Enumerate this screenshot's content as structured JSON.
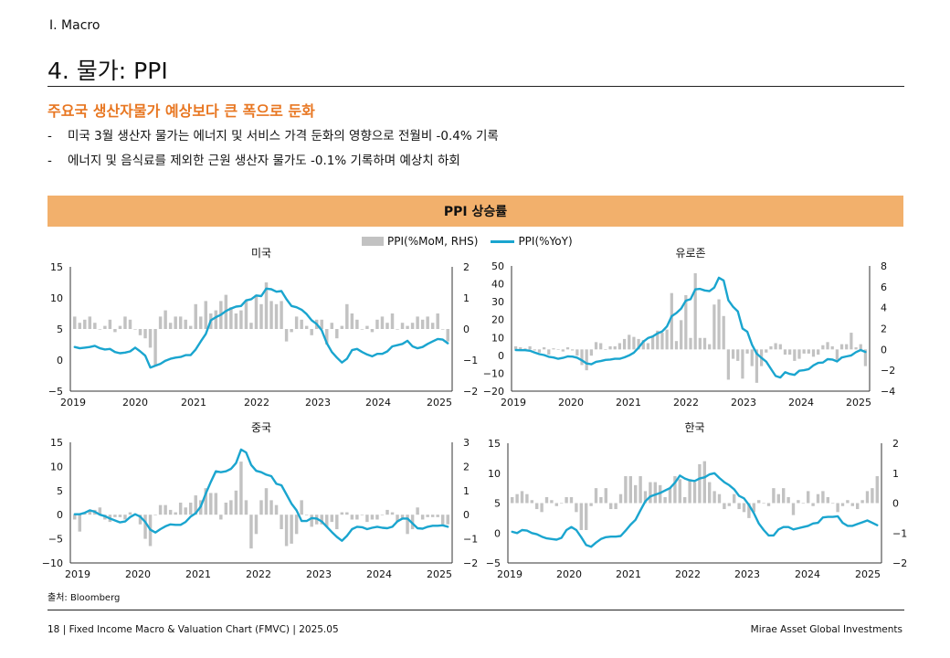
{
  "header": {
    "section": "I. Macro",
    "title": "4. 물가: PPI",
    "headline": "주요국 생산자물가 예상보다 큰 폭으로 둔화",
    "bullets": [
      "미국 3월 생산자 물가는 에너지 및 서비스 가격 둔화의 영향으로 전월비 -0.4% 기록",
      "에너지 및 음식료를 제외한 근원 생산자 물가도 -0.1% 기록하며 예상치 하회"
    ],
    "bullet_dash": "-"
  },
  "banner": {
    "title": "PPI 상승률"
  },
  "legend": {
    "bar": "PPI(%MoM, RHS)",
    "line": "PPI(%YoY)"
  },
  "colors": {
    "accent": "#e87722",
    "banner_bg": "#f2b06c",
    "bar": "#c2c2c2",
    "line": "#1aa5cf"
  },
  "chart_data": [
    {
      "type": "bar+line",
      "title": "미국",
      "x_ticks": [
        "2019",
        "2020",
        "2021",
        "2022",
        "2023",
        "2024",
        "2025"
      ],
      "x_range": [
        2019.0,
        2025.33
      ],
      "y_left": [
        -5,
        15
      ],
      "y_left_ticks": [
        -5,
        0,
        5,
        10,
        15
      ],
      "y_right": [
        -2,
        2
      ],
      "y_right_ticks": [
        -2,
        -1,
        0,
        1,
        2
      ],
      "series": [
        {
          "name": "PPI(%MoM, RHS)",
          "kind": "bar",
          "axis": "right",
          "values": [
            0.4,
            0.2,
            0.3,
            0.4,
            0.2,
            0.0,
            0.1,
            0.3,
            -0.1,
            0.1,
            0.4,
            0.3,
            0.0,
            -0.2,
            -0.3,
            -0.6,
            -1.2,
            0.4,
            0.6,
            0.2,
            0.4,
            0.4,
            0.3,
            0.1,
            0.8,
            0.4,
            0.9,
            0.5,
            0.6,
            0.9,
            1.1,
            0.7,
            0.5,
            0.6,
            0.9,
            0.2,
            1.1,
            0.8,
            1.5,
            0.9,
            0.8,
            0.9,
            -0.4,
            -0.1,
            0.4,
            0.3,
            0.1,
            -0.2,
            0.3,
            0.3,
            -0.5,
            0.2,
            -0.3,
            0.1,
            0.8,
            0.5,
            0.3,
            0.0,
            0.1,
            -0.1,
            0.3,
            0.4,
            0.2,
            0.5,
            0.0,
            0.2,
            0.1,
            0.2,
            0.4,
            0.3,
            0.4,
            0.2,
            0.5,
            0.0,
            -0.4
          ]
        },
        {
          "name": "PPI(%YoY)",
          "kind": "line",
          "axis": "left",
          "values": [
            2.1,
            1.9,
            2.0,
            2.1,
            2.3,
            1.9,
            1.7,
            1.8,
            1.3,
            1.1,
            1.2,
            1.4,
            2.0,
            1.4,
            0.7,
            -1.2,
            -0.9,
            -0.6,
            -0.1,
            0.2,
            0.4,
            0.5,
            0.8,
            0.8,
            1.7,
            3.0,
            4.2,
            6.4,
            6.9,
            7.3,
            7.9,
            8.3,
            8.6,
            8.7,
            9.6,
            9.8,
            10.4,
            10.3,
            11.5,
            11.4,
            11.0,
            11.1,
            9.8,
            8.7,
            8.5,
            8.1,
            7.4,
            6.4,
            5.8,
            4.8,
            2.7,
            1.3,
            0.4,
            -0.4,
            0.2,
            1.6,
            1.8,
            1.3,
            0.9,
            0.6,
            1.0,
            1.0,
            1.4,
            2.2,
            2.4,
            2.6,
            3.1,
            2.2,
            1.9,
            2.1,
            2.6,
            3.0,
            3.4,
            3.3,
            2.7
          ]
        }
      ]
    },
    {
      "type": "bar+line",
      "title": "유로존",
      "x_ticks": [
        "2019",
        "2020",
        "2021",
        "2022",
        "2023",
        "2024",
        "2025"
      ],
      "x_range": [
        2019.0,
        2025.25
      ],
      "y_left": [
        -20,
        50
      ],
      "y_left_ticks": [
        -20,
        -10,
        0,
        10,
        20,
        30,
        40,
        50
      ],
      "y_right": [
        -4,
        8
      ],
      "y_right_ticks": [
        -4,
        -2,
        0,
        2,
        4,
        6,
        8
      ],
      "series": [
        {
          "name": "PPI(%MoM, RHS)",
          "kind": "bar",
          "axis": "right",
          "values": [
            0.3,
            0.2,
            0.1,
            0.3,
            -0.1,
            -0.3,
            0.2,
            -0.5,
            0.1,
            0.0,
            -0.2,
            0.2,
            -0.1,
            -0.6,
            -1.5,
            -2.0,
            -0.6,
            0.7,
            0.6,
            0.0,
            0.3,
            0.3,
            0.6,
            1.0,
            1.4,
            1.2,
            1.0,
            0.9,
            0.6,
            1.2,
            1.8,
            1.6,
            1.9,
            5.4,
            0.8,
            2.8,
            5.2,
            1.1,
            7.3,
            1.1,
            1.1,
            0.5,
            4.3,
            4.8,
            3.2,
            -2.9,
            -0.9,
            -1.1,
            -2.8,
            -0.4,
            -1.6,
            -3.2,
            -1.6,
            -0.3,
            0.3,
            0.6,
            0.5,
            -0.5,
            -0.5,
            -1.1,
            -0.9,
            -0.4,
            -0.4,
            -0.7,
            -0.5,
            0.4,
            0.7,
            0.3,
            -1.0,
            0.5,
            0.5,
            1.6,
            0.2,
            0.5,
            -1.6
          ]
        },
        {
          "name": "PPI(%YoY)",
          "kind": "line",
          "axis": "left",
          "values": [
            3.0,
            2.9,
            2.9,
            2.6,
            1.6,
            0.7,
            0.2,
            -0.8,
            -1.2,
            -1.9,
            -1.4,
            -0.6,
            -0.7,
            -1.3,
            -2.8,
            -4.5,
            -5.0,
            -3.6,
            -3.2,
            -2.5,
            -2.3,
            -1.9,
            -1.9,
            -1.1,
            0.0,
            1.5,
            4.3,
            7.7,
            9.7,
            10.6,
            12.3,
            13.4,
            16.2,
            21.9,
            23.7,
            26.2,
            30.6,
            31.4,
            36.9,
            37.2,
            36.3,
            35.9,
            37.9,
            43.4,
            41.9,
            30.8,
            27.1,
            24.6,
            15.0,
            13.2,
            5.9,
            1.0,
            -1.4,
            -3.5,
            -7.5,
            -11.5,
            -12.4,
            -9.4,
            -10.4,
            -10.9,
            -8.6,
            -8.3,
            -7.7,
            -5.6,
            -4.2,
            -4.0,
            -2.1,
            -2.3,
            -3.4,
            -1.2,
            -0.6,
            0.0,
            1.8,
            3.0,
            1.9
          ]
        }
      ]
    },
    {
      "type": "bar+line",
      "title": "중국",
      "x_ticks": [
        "2019",
        "2020",
        "2021",
        "2022",
        "2023",
        "2024",
        "2025"
      ],
      "x_range": [
        2019.0,
        2025.33
      ],
      "y_left": [
        -10,
        15
      ],
      "y_left_ticks": [
        -10,
        -5,
        0,
        5,
        10,
        15
      ],
      "y_right": [
        -2,
        3
      ],
      "y_right_ticks": [
        -2,
        -1,
        0,
        1,
        2,
        3
      ],
      "series": [
        {
          "name": "PPI(%MoM, RHS)",
          "kind": "bar",
          "axis": "right",
          "values": [
            -0.2,
            -0.7,
            0.1,
            0.2,
            0.2,
            0.3,
            -0.2,
            -0.3,
            -0.1,
            -0.1,
            -0.2,
            0.1,
            0.0,
            -0.4,
            -1.0,
            -1.3,
            0.0,
            0.4,
            0.4,
            0.2,
            0.1,
            0.5,
            0.3,
            0.5,
            0.8,
            0.6,
            1.1,
            0.9,
            0.9,
            -0.2,
            0.5,
            0.6,
            1.0,
            2.2,
            0.6,
            -1.4,
            -0.8,
            0.6,
            1.1,
            0.6,
            0.4,
            -0.6,
            -1.3,
            -1.2,
            -0.8,
            0.6,
            0.0,
            -0.5,
            -0.4,
            -0.4,
            -0.5,
            -0.3,
            -0.6,
            0.1,
            0.1,
            -0.2,
            -0.2,
            0.0,
            -0.3,
            -0.2,
            -0.2,
            0.0,
            0.2,
            0.1,
            -0.3,
            -0.2,
            -0.8,
            -0.6,
            0.3,
            -0.2,
            -0.1,
            -0.1,
            -0.1,
            -0.4,
            -0.4
          ]
        },
        {
          "name": "PPI(%YoY)",
          "kind": "line",
          "axis": "left",
          "values": [
            0.1,
            0.1,
            0.4,
            0.9,
            0.6,
            0.0,
            -0.3,
            -0.8,
            -1.2,
            -1.6,
            -1.4,
            -0.5,
            0.1,
            -0.4,
            -1.5,
            -3.1,
            -3.7,
            -3.0,
            -2.4,
            -2.0,
            -2.1,
            -2.1,
            -1.5,
            -0.4,
            0.3,
            1.7,
            4.4,
            6.8,
            9.0,
            8.8,
            9.0,
            9.5,
            10.7,
            13.5,
            12.9,
            10.3,
            9.1,
            8.8,
            8.3,
            8.0,
            6.4,
            6.1,
            4.2,
            2.3,
            0.9,
            -1.3,
            -1.3,
            -0.7,
            -0.8,
            -1.4,
            -2.5,
            -3.6,
            -4.6,
            -5.4,
            -4.4,
            -3.0,
            -2.5,
            -2.6,
            -3.0,
            -2.7,
            -2.5,
            -2.7,
            -2.8,
            -2.5,
            -1.4,
            -0.8,
            -0.8,
            -1.8,
            -2.8,
            -2.9,
            -2.5,
            -2.3,
            -2.3,
            -2.2,
            -2.5
          ]
        }
      ]
    },
    {
      "type": "bar+line",
      "title": "한국",
      "x_ticks": [
        "2019",
        "2020",
        "2021",
        "2022",
        "2023",
        "2024",
        "2025"
      ],
      "x_range": [
        2019.0,
        2025.25
      ],
      "y_left": [
        -5,
        15
      ],
      "y_left_ticks": [
        -5,
        0,
        5,
        10,
        15
      ],
      "y_right": [
        -2,
        2
      ],
      "y_right_ticks": [
        -2,
        -1,
        0,
        1,
        2
      ],
      "series": [
        {
          "name": "PPI(%MoM, RHS)",
          "kind": "bar",
          "axis": "right",
          "values": [
            0.2,
            0.3,
            0.4,
            0.3,
            0.1,
            -0.2,
            -0.3,
            0.2,
            0.1,
            -0.1,
            0.0,
            0.2,
            0.2,
            -0.3,
            -0.9,
            -0.9,
            -0.1,
            0.5,
            0.2,
            0.5,
            -0.2,
            -0.2,
            0.3,
            0.9,
            0.9,
            0.6,
            0.9,
            0.4,
            0.7,
            0.7,
            0.6,
            0.2,
            0.5,
            0.9,
            0.8,
            0.2,
            0.8,
            0.7,
            1.3,
            1.4,
            0.7,
            0.4,
            0.3,
            -0.2,
            -0.1,
            0.3,
            -0.2,
            -0.3,
            -0.5,
            -0.3,
            0.1,
            0.0,
            -0.1,
            0.5,
            0.3,
            0.5,
            0.2,
            -0.4,
            0.1,
            0.0,
            0.4,
            -0.1,
            0.3,
            0.4,
            0.2,
            0.0,
            -0.3,
            -0.1,
            0.1,
            -0.1,
            -0.2,
            0.1,
            0.4,
            0.5,
            0.9
          ]
        },
        {
          "name": "PPI(%YoY)",
          "kind": "line",
          "axis": "left",
          "values": [
            0.2,
            0.0,
            0.5,
            0.4,
            0.0,
            -0.2,
            -0.6,
            -0.9,
            -1.0,
            -1.1,
            -0.8,
            0.5,
            1.0,
            0.5,
            -0.7,
            -2.0,
            -2.3,
            -1.6,
            -1.0,
            -0.7,
            -0.6,
            -0.6,
            -0.5,
            0.4,
            1.4,
            2.2,
            3.8,
            5.3,
            6.1,
            6.4,
            6.7,
            7.1,
            7.5,
            8.4,
            9.6,
            9.1,
            8.8,
            8.7,
            9.1,
            9.3,
            9.8,
            10.0,
            9.2,
            8.5,
            8.0,
            7.3,
            6.2,
            5.8,
            4.7,
            3.3,
            1.6,
            0.5,
            -0.4,
            -0.4,
            0.6,
            1.0,
            1.0,
            0.6,
            0.8,
            1.0,
            1.2,
            1.6,
            1.7,
            2.6,
            2.7,
            2.7,
            2.8,
            1.7,
            1.2,
            1.2,
            1.5,
            1.8,
            2.1,
            1.7,
            1.3
          ]
        }
      ]
    }
  ],
  "footer": {
    "source": "출처: Bloomberg",
    "left": "18 | Fixed Income Macro & Valuation Chart (FMVC) | 2025.05",
    "right": "Mirae Asset Global Investments"
  }
}
